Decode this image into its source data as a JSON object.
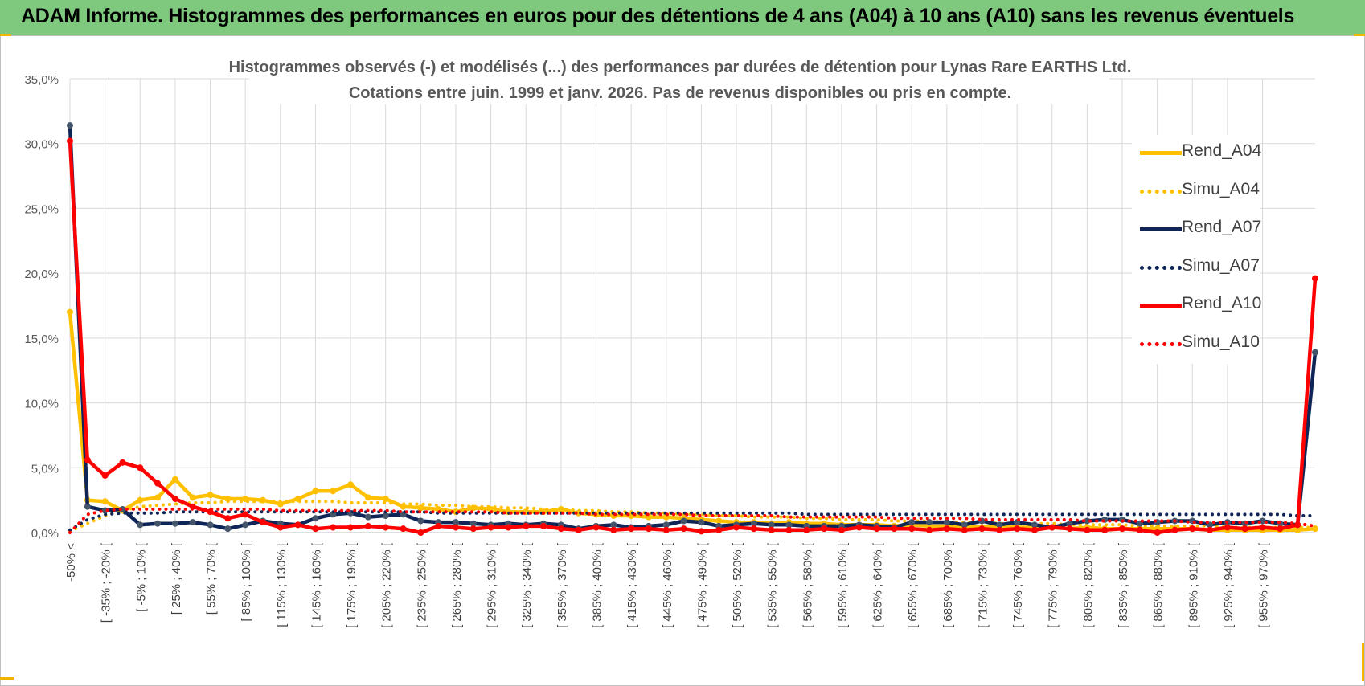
{
  "header": {
    "title": "ADAM Informe. Histogrammes des performances en euros pour des détentions de 4 ans (A04) à 10 ans (A10) sans les revenus éventuels"
  },
  "chart_data": {
    "type": "line",
    "title": "Histogrammes observés (-) et modélisés (...) des performances par durées de détention pour Lynas Rare EARTHS Ltd.",
    "subtitle": "Cotations entre juin. 1999 et janv. 2026. Pas de revenus disponibles ou pris en compte.",
    "ylim": [
      0,
      35
    ],
    "yticks": [
      "0,0%",
      "5,0%",
      "10,0%",
      "15,0%",
      "20,0%",
      "25,0%",
      "30,0%",
      "35,0%"
    ],
    "x_tick_labels": [
      "-50% <",
      "[ -35% ; -20% [",
      "[ -5% ; 10% [",
      "[ 25% ; 40% [",
      "[ 55% ; 70% [",
      "[ 85% ; 100% [",
      "[ 115% ; 130% [",
      "[ 145% ; 160% [",
      "[ 175% ; 190% [",
      "[ 205% ; 220% [",
      "[ 235% ; 250% [",
      "[ 265% ; 280% [",
      "[ 295% ; 310% [",
      "[ 325% ; 340% [",
      "[ 355% ; 370% [",
      "[ 385% ; 400% [",
      "[ 415% ; 430% [",
      "[ 445% ; 460% [",
      "[ 475% ; 490% [",
      "[ 505% ; 520% [",
      "[ 535% ; 550% [",
      "[ 565% ; 580% [",
      "[ 595% ; 610% [",
      "[ 625% ; 640% [",
      "[ 655% ; 670% [",
      "[ 685% ; 700% [",
      "[ 715% ; 730% [",
      "[ 745% ; 760% [",
      "[ 775% ; 790% [",
      "[ 805% ; 820% [",
      "[ 835% ; 850% [",
      "[ 865% ; 880% [",
      "[ 895% ; 910% [",
      "[ 925% ; 940% [",
      "[ 955% ; 970% ["
    ],
    "grid": true,
    "legend_position": "right",
    "series": [
      {
        "name": "Rend_A04",
        "color": "#ffc000",
        "style": "solid",
        "values": [
          17.0,
          2.5,
          2.4,
          1.7,
          2.5,
          2.7,
          4.1,
          2.7,
          2.9,
          2.6,
          2.6,
          2.5,
          2.2,
          2.6,
          3.2,
          3.2,
          3.7,
          2.7,
          2.6,
          2.0,
          1.9,
          1.8,
          1.6,
          1.9,
          1.8,
          1.6,
          1.6,
          1.6,
          1.8,
          1.5,
          1.4,
          1.3,
          1.3,
          1.2,
          1.2,
          1.1,
          1.0,
          0.9,
          0.8,
          0.8,
          0.7,
          0.8,
          0.7,
          0.7,
          0.6,
          0.6,
          0.6,
          0.5,
          0.6,
          0.5,
          0.5,
          0.5,
          0.4,
          0.5,
          0.4,
          0.4,
          0.4,
          0.3,
          0.4,
          0.3,
          0.3,
          0.3,
          0.3,
          0.3,
          0.3,
          0.2,
          0.2,
          0.2,
          0.2,
          0.2,
          0.2,
          0.3
        ]
      },
      {
        "name": "Simu_A04",
        "color": "#ffc000",
        "style": "dotted",
        "values": [
          0.1,
          0.7,
          1.3,
          1.7,
          2.0,
          2.1,
          2.2,
          2.3,
          2.3,
          2.4,
          2.4,
          2.4,
          2.4,
          2.4,
          2.4,
          2.4,
          2.3,
          2.3,
          2.3,
          2.2,
          2.2,
          2.1,
          2.1,
          2.0,
          2.0,
          1.9,
          1.9,
          1.8,
          1.8,
          1.7,
          1.7,
          1.6,
          1.6,
          1.5,
          1.5,
          1.4,
          1.4,
          1.3,
          1.3,
          1.2,
          1.2,
          1.2,
          1.1,
          1.1,
          1.0,
          1.0,
          1.0,
          0.9,
          0.9,
          0.9,
          0.8,
          0.8,
          0.8,
          0.7,
          0.7,
          0.7,
          0.7,
          0.6,
          0.6,
          0.6,
          0.6,
          0.5,
          0.5,
          0.5,
          0.5,
          0.5,
          0.4,
          0.4,
          0.4,
          0.4,
          0.4,
          0.4
        ]
      },
      {
        "name": "Rend_A07",
        "color": "#0f2557",
        "style": "solid",
        "values": [
          31.4,
          2.0,
          1.7,
          1.8,
          0.6,
          0.7,
          0.7,
          0.8,
          0.6,
          0.3,
          0.6,
          0.9,
          0.7,
          0.6,
          1.1,
          1.4,
          1.5,
          1.2,
          1.3,
          1.4,
          0.9,
          0.8,
          0.8,
          0.7,
          0.6,
          0.7,
          0.6,
          0.7,
          0.6,
          0.3,
          0.5,
          0.6,
          0.4,
          0.5,
          0.6,
          0.9,
          0.8,
          0.5,
          0.6,
          0.7,
          0.6,
          0.6,
          0.5,
          0.5,
          0.5,
          0.6,
          0.5,
          0.4,
          0.8,
          0.8,
          0.8,
          0.6,
          0.9,
          0.6,
          0.8,
          0.6,
          0.4,
          0.7,
          0.9,
          1.0,
          1.0,
          0.7,
          0.8,
          0.9,
          0.9,
          0.6,
          0.8,
          0.7,
          0.9,
          0.7,
          0.6,
          13.9
        ]
      },
      {
        "name": "Simu_A07",
        "color": "#0f2557",
        "style": "dotted",
        "values": [
          0.2,
          1.0,
          1.4,
          1.5,
          1.5,
          1.5,
          1.6,
          1.6,
          1.6,
          1.6,
          1.6,
          1.6,
          1.6,
          1.6,
          1.6,
          1.6,
          1.6,
          1.6,
          1.6,
          1.6,
          1.6,
          1.5,
          1.5,
          1.5,
          1.5,
          1.5,
          1.5,
          1.5,
          1.5,
          1.5,
          1.5,
          1.5,
          1.5,
          1.5,
          1.5,
          1.5,
          1.5,
          1.5,
          1.5,
          1.5,
          1.5,
          1.5,
          1.4,
          1.4,
          1.4,
          1.4,
          1.4,
          1.4,
          1.4,
          1.4,
          1.4,
          1.4,
          1.4,
          1.4,
          1.4,
          1.4,
          1.4,
          1.4,
          1.4,
          1.4,
          1.4,
          1.4,
          1.4,
          1.4,
          1.4,
          1.4,
          1.4,
          1.4,
          1.4,
          1.4,
          1.3,
          1.3
        ]
      },
      {
        "name": "Rend_A10",
        "color": "#ff0000",
        "style": "solid",
        "values": [
          30.2,
          5.6,
          4.4,
          5.4,
          5.0,
          3.8,
          2.6,
          2.0,
          1.6,
          1.1,
          1.4,
          0.8,
          0.4,
          0.6,
          0.3,
          0.4,
          0.4,
          0.5,
          0.4,
          0.3,
          0.0,
          0.5,
          0.4,
          0.3,
          0.4,
          0.4,
          0.5,
          0.5,
          0.3,
          0.2,
          0.4,
          0.2,
          0.3,
          0.3,
          0.2,
          0.3,
          0.1,
          0.2,
          0.4,
          0.3,
          0.2,
          0.2,
          0.2,
          0.3,
          0.2,
          0.4,
          0.3,
          0.3,
          0.3,
          0.2,
          0.3,
          0.2,
          0.3,
          0.2,
          0.3,
          0.2,
          0.4,
          0.3,
          0.2,
          0.2,
          0.3,
          0.2,
          0.0,
          0.2,
          0.3,
          0.2,
          0.4,
          0.3,
          0.4,
          0.3,
          0.6,
          19.6
        ]
      },
      {
        "name": "Simu_A10",
        "color": "#ff0000",
        "style": "dotted",
        "values": [
          0.0,
          1.4,
          1.7,
          1.8,
          1.8,
          1.8,
          1.8,
          1.8,
          1.8,
          1.8,
          1.8,
          1.8,
          1.7,
          1.7,
          1.7,
          1.7,
          1.7,
          1.7,
          1.7,
          1.6,
          1.6,
          1.6,
          1.6,
          1.6,
          1.6,
          1.5,
          1.5,
          1.5,
          1.5,
          1.5,
          1.4,
          1.4,
          1.4,
          1.4,
          1.4,
          1.4,
          1.3,
          1.3,
          1.3,
          1.3,
          1.3,
          1.2,
          1.2,
          1.2,
          1.2,
          1.2,
          1.2,
          1.1,
          1.1,
          1.1,
          1.1,
          1.1,
          1.0,
          1.0,
          1.0,
          1.0,
          1.0,
          1.0,
          0.9,
          0.9,
          0.9,
          0.9,
          0.9,
          0.9,
          0.8,
          0.8,
          0.8,
          0.8,
          0.8,
          0.8,
          0.7,
          0.5
        ]
      }
    ]
  }
}
